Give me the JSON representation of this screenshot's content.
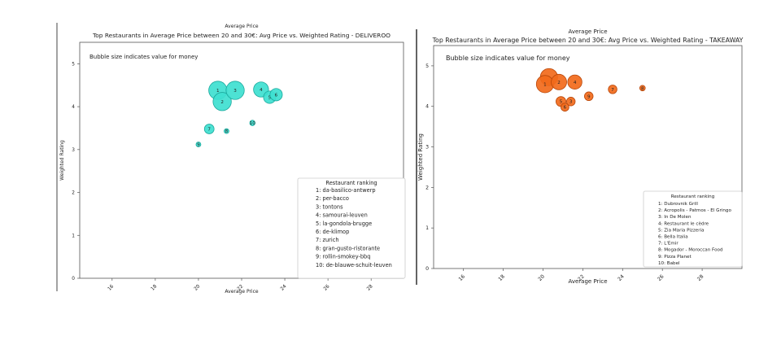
{
  "colors": {
    "left": "#3ee0d0",
    "left_edge": "#1aa89c",
    "right": "#f26a1b",
    "right_edge": "#b8470a"
  },
  "chart_data": [
    {
      "type": "scatter",
      "top_label": "Average Price",
      "title": "Top Restaurants in Average Price between 20 and 30€: Avg Price vs. Weighted Rating - DELIVEROO",
      "xlabel": "Average Price",
      "ylabel": "Weighted Rating",
      "annotation": "Bubble size indicates value for money",
      "xlim": [
        14.5,
        29.5
      ],
      "ylim": [
        0,
        5.5
      ],
      "xticks": [
        16,
        18,
        20,
        22,
        24,
        26,
        28
      ],
      "yticks": [
        0,
        1,
        2,
        3,
        4,
        5
      ],
      "legend_title": "Restaurant ranking",
      "legend_position": "lower-right",
      "legend": [
        "1: da-basilico-antwerp",
        "2: per-bacco",
        "3: tontons",
        "4: samourai-leuven",
        "5: la-gondola-brugge",
        "6: de-klimop",
        "7: zurich",
        "8: gran-gusto-ristorante",
        "9: rollin-smokey-bbq",
        "10: de-blauwe-schuit-leuven"
      ],
      "points": [
        {
          "label": "1",
          "x": 20.9,
          "y": 4.38,
          "size": 3.4
        },
        {
          "label": "2",
          "x": 21.1,
          "y": 4.12,
          "size": 3.4
        },
        {
          "label": "3",
          "x": 21.7,
          "y": 4.38,
          "size": 3.4
        },
        {
          "label": "4",
          "x": 22.9,
          "y": 4.4,
          "size": 2.8
        },
        {
          "label": "5",
          "x": 23.3,
          "y": 4.22,
          "size": 2.3
        },
        {
          "label": "6",
          "x": 23.6,
          "y": 4.28,
          "size": 2.3
        },
        {
          "label": "7",
          "x": 20.5,
          "y": 3.48,
          "size": 1.8
        },
        {
          "label": "8",
          "x": 21.3,
          "y": 3.43,
          "size": 0.9
        },
        {
          "label": "9",
          "x": 20.0,
          "y": 3.12,
          "size": 0.9
        },
        {
          "label": "10",
          "x": 22.5,
          "y": 3.62,
          "size": 1.0
        }
      ]
    },
    {
      "type": "scatter",
      "top_label": "Average Price",
      "title": "Top Restaurants in Average Price between 20 and 30€: Avg Price vs. Weighted Rating - TAKEAWAY",
      "xlabel": "Average Price",
      "ylabel": "Weighted Rating",
      "annotation": "Bubble size indicates value for money",
      "xlim": [
        14.5,
        30
      ],
      "ylim": [
        0,
        5.5
      ],
      "xticks": [
        16,
        18,
        20,
        22,
        24,
        26,
        28
      ],
      "yticks": [
        0,
        1,
        2,
        3,
        4,
        5
      ],
      "legend_title": "Restaurant ranking",
      "legend_position": "lower-right",
      "legend": [
        "1: Dubrovnik Grill",
        "2: Acropolis - Patmos - El Gringo",
        "3: In De Molen",
        "4: Restaurant le cèdre",
        "5: Zia Maria Pizzeria",
        "6: Bella Italia",
        "7: L'Emir",
        "8: Mogador - Moroccan Food",
        "9: Pizza Planet",
        "10: Babel"
      ],
      "points": [
        {
          "label": "",
          "x": 20.3,
          "y": 4.72,
          "size": 2.8
        },
        {
          "label": "1",
          "x": 20.1,
          "y": 4.55,
          "size": 2.8
        },
        {
          "label": "2",
          "x": 20.8,
          "y": 4.6,
          "size": 2.5
        },
        {
          "label": "4",
          "x": 21.6,
          "y": 4.6,
          "size": 2.3
        },
        {
          "label": "5",
          "x": 20.9,
          "y": 4.12,
          "size": 1.6
        },
        {
          "label": "6",
          "x": 21.1,
          "y": 3.98,
          "size": 1.3
        },
        {
          "label": "3",
          "x": 21.4,
          "y": 4.12,
          "size": 1.4
        },
        {
          "label": "9",
          "x": 22.3,
          "y": 4.25,
          "size": 1.4
        },
        {
          "label": "7",
          "x": 23.5,
          "y": 4.42,
          "size": 1.4
        },
        {
          "label": "8",
          "x": 25.0,
          "y": 4.45,
          "size": 0.9
        }
      ]
    }
  ]
}
